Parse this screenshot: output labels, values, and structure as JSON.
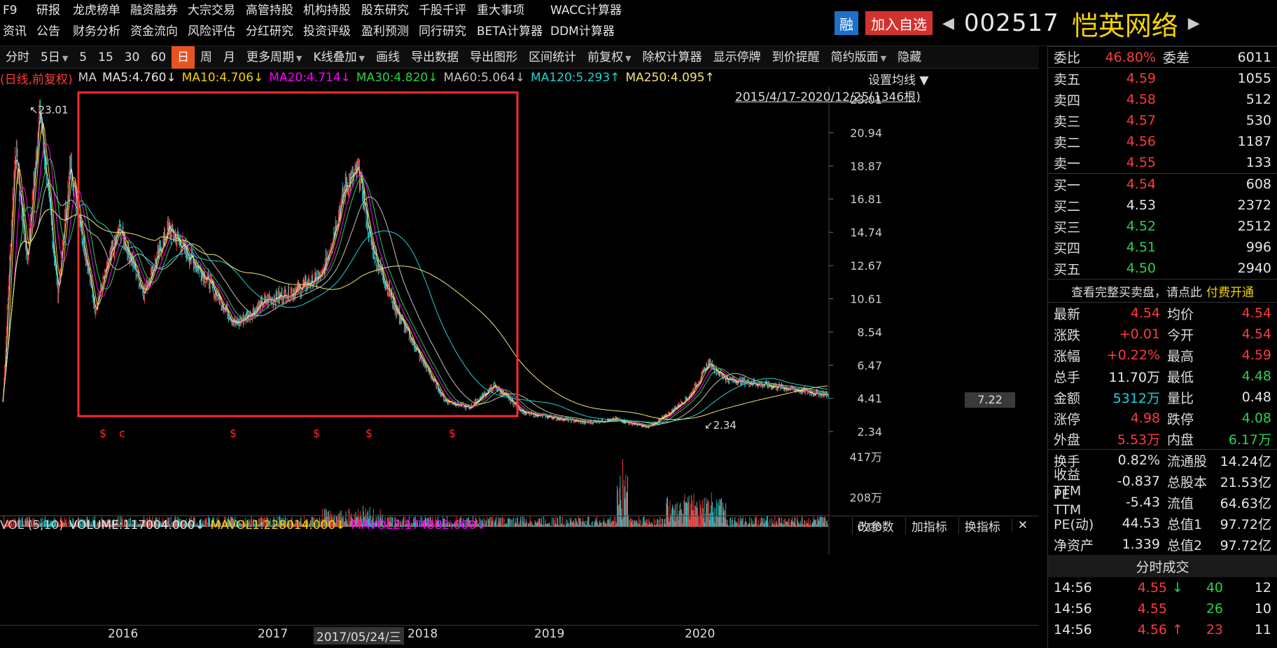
{
  "nav": {
    "row1": [
      "F9",
      "研报",
      "龙虎榜单",
      "融资融券",
      "大宗交易",
      "高管持股",
      "机构持股",
      "股东研究",
      "千股千评",
      "重大事项",
      "WACC计算器"
    ],
    "row2": [
      "资讯",
      "公告",
      "财务分析",
      "资金流向",
      "风险评估",
      "分红研究",
      "投资评级",
      "盈利预测",
      "同行研究",
      "BETA计算器",
      "DDM计算器"
    ]
  },
  "header": {
    "rz_label": "融",
    "add_label": "加入自选",
    "code": "002517",
    "name": "恺英网络",
    "prev_arrow": "◀",
    "next_arrow": "▶"
  },
  "toolbar": {
    "items": [
      "分时",
      "5日",
      "5",
      "15",
      "30",
      "60",
      "日",
      "周",
      "月",
      "更多周期",
      "K线叠加",
      "画线",
      "导出数据",
      "导出图形",
      "区间统计",
      "前复权",
      "除权计算器",
      "显示停牌",
      "到价提醒",
      "简约版面",
      "隐藏"
    ],
    "active": "日"
  },
  "ma_bar": {
    "prefix": "(日线,前复权)",
    "ma": "MA",
    "ma5": "MA5:4.760↓",
    "ma10": "MA10:4.706↓",
    "ma20": "MA20:4.714↓",
    "ma30": "MA30:4.820↓",
    "ma60": "MA60:5.064↓",
    "ma120": "MA120:5.293↑",
    "ma250": "MA250:4.095↑",
    "colors": {
      "ma5": "#e6e6e6",
      "ma10": "#f5d400",
      "ma20": "#ff00ff",
      "ma30": "#2ad24a",
      "ma60": "#c0c0c0",
      "ma120": "#21d1d1",
      "ma250": "#f5e37a"
    }
  },
  "chart_meta": {
    "ma_setting": "设置均线 ▼",
    "range": "2015/4/17-2020/12/25(1346根)",
    "price_ticks": [
      "23.01",
      "20.94",
      "18.87",
      "16.81",
      "14.74",
      "12.67",
      "10.61",
      "8.54",
      "6.47",
      "4.41",
      "2.34"
    ],
    "current_price_label": "7.22",
    "max_label": "23.01",
    "min_label": "2.34",
    "event_markers": [
      "$",
      "c",
      "$",
      "$",
      "$",
      "$"
    ],
    "highlight_box_color": "#ff2a2a"
  },
  "volume": {
    "prefix": "VOL (5,10)",
    "volume": "VOLUME:117004.000↓",
    "mavol1": "MAVOL1:228014.000↓",
    "mavol2": "MAVOL2:174882.000↓",
    "ticks": [
      "417万",
      "208万",
      "0.00"
    ],
    "tools": [
      "改参数",
      "加指标",
      "换指标"
    ],
    "close": "✕"
  },
  "xaxis": {
    "years": [
      "2016",
      "2017",
      "2018",
      "2019",
      "2020"
    ],
    "cursor_date": "2017/05/24/三"
  },
  "order_book": {
    "wb_label": "委比",
    "wb_value": "46.80%",
    "wc_label": "委差",
    "wc_value": "6011",
    "sell": [
      {
        "label": "卖五",
        "price": "4.59",
        "vol": "1055"
      },
      {
        "label": "卖四",
        "price": "4.58",
        "vol": "512"
      },
      {
        "label": "卖三",
        "price": "4.57",
        "vol": "530"
      },
      {
        "label": "卖二",
        "price": "4.56",
        "vol": "1187"
      },
      {
        "label": "卖一",
        "price": "4.55",
        "vol": "133"
      }
    ],
    "buy": [
      {
        "label": "买一",
        "price": "4.54",
        "vol": "608"
      },
      {
        "label": "买二",
        "price": "4.53",
        "vol": "2372"
      },
      {
        "label": "买三",
        "price": "4.52",
        "vol": "2512"
      },
      {
        "label": "买四",
        "price": "4.51",
        "vol": "996"
      },
      {
        "label": "买五",
        "price": "4.50",
        "vol": "2940"
      }
    ],
    "paid_banner_text": "查看完整买卖盘，请点此",
    "paid_banner_link": "付费开通"
  },
  "quote": [
    {
      "l1": "最新",
      "v1": "4.54",
      "c1": "red",
      "l2": "均价",
      "v2": "4.54",
      "c2": "red"
    },
    {
      "l1": "涨跌",
      "v1": "+0.01",
      "c1": "red",
      "l2": "今开",
      "v2": "4.54",
      "c2": "red"
    },
    {
      "l1": "涨幅",
      "v1": "+0.22%",
      "c1": "red",
      "l2": "最高",
      "v2": "4.59",
      "c2": "red"
    },
    {
      "l1": "总手",
      "v1": "11.70万",
      "c1": "white",
      "l2": "最低",
      "v2": "4.48",
      "c2": "green"
    },
    {
      "l1": "金额",
      "v1": "5312万",
      "c1": "cyan",
      "l2": "量比",
      "v2": "0.48",
      "c2": "white"
    },
    {
      "l1": "涨停",
      "v1": "4.98",
      "c1": "red",
      "l2": "跌停",
      "v2": "4.08",
      "c2": "green"
    },
    {
      "l1": "外盘",
      "v1": "5.53万",
      "c1": "red",
      "l2": "内盘",
      "v2": "6.17万",
      "c2": "green"
    },
    {
      "l1": "换手",
      "v1": "0.82%",
      "c1": "white",
      "l2": "流通股",
      "v2": "14.24亿",
      "c2": "white"
    },
    {
      "l1": "收益TTM",
      "v1": "-0.837",
      "c1": "white",
      "l2": "总股本",
      "v2": "21.53亿",
      "c2": "white"
    },
    {
      "l1": "PE TTM",
      "v1": "-5.43",
      "c1": "white",
      "l2": "流值",
      "v2": "64.63亿",
      "c2": "white"
    },
    {
      "l1": "PE(动)",
      "v1": "44.53",
      "c1": "white",
      "l2": "总值1",
      "v2": "97.72亿",
      "c2": "white"
    },
    {
      "l1": "净资产",
      "v1": "1.339",
      "c1": "white",
      "l2": "总值2",
      "v2": "97.72亿",
      "c2": "white"
    }
  ],
  "trades": {
    "title": "分时成交",
    "rows": [
      {
        "t": "14:56",
        "p": "4.55",
        "arrow": "↓",
        "q": "40",
        "n": "12",
        "pc": "red",
        "ac": "green",
        "qc": "green"
      },
      {
        "t": "14:56",
        "p": "4.55",
        "arrow": "",
        "q": "26",
        "n": "10",
        "pc": "red",
        "ac": "white",
        "qc": "green"
      },
      {
        "t": "14:56",
        "p": "4.56",
        "arrow": "↑",
        "q": "23",
        "n": "11",
        "pc": "red",
        "ac": "red",
        "qc": "red"
      }
    ]
  }
}
